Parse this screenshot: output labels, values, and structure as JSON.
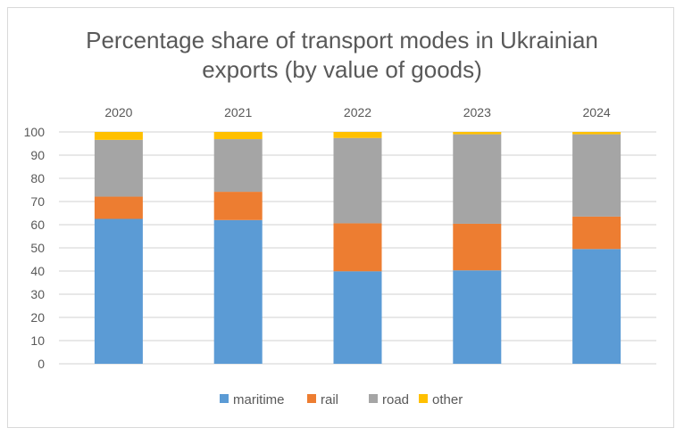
{
  "chart_data": {
    "type": "bar",
    "stacked": true,
    "title_lines": [
      "Percentage share of transport modes in Ukrainian",
      "exports (by value of goods)"
    ],
    "categories": [
      "2020",
      "2021",
      "2022",
      "2023",
      "2024"
    ],
    "category_labels_position": "top",
    "series": [
      {
        "name": "maritime",
        "color": "#5b9bd5",
        "values": [
          62.5,
          62.0,
          39.9,
          40.3,
          49.5
        ]
      },
      {
        "name": "rail",
        "color": "#ed7d31",
        "values": [
          9.6,
          12.2,
          20.7,
          20.1,
          14.0
        ]
      },
      {
        "name": "road",
        "color": "#a5a5a5",
        "values": [
          24.5,
          22.7,
          36.8,
          38.6,
          35.5
        ]
      },
      {
        "name": "other",
        "color": "#ffc000",
        "values": [
          3.4,
          3.1,
          2.6,
          1.0,
          1.0
        ]
      }
    ],
    "ylim": [
      0,
      100
    ],
    "yticks": [
      "0",
      "10",
      "20",
      "30",
      "40",
      "50",
      "60",
      "70",
      "80",
      "90",
      "100"
    ],
    "grid": true,
    "legend": "bottom"
  }
}
